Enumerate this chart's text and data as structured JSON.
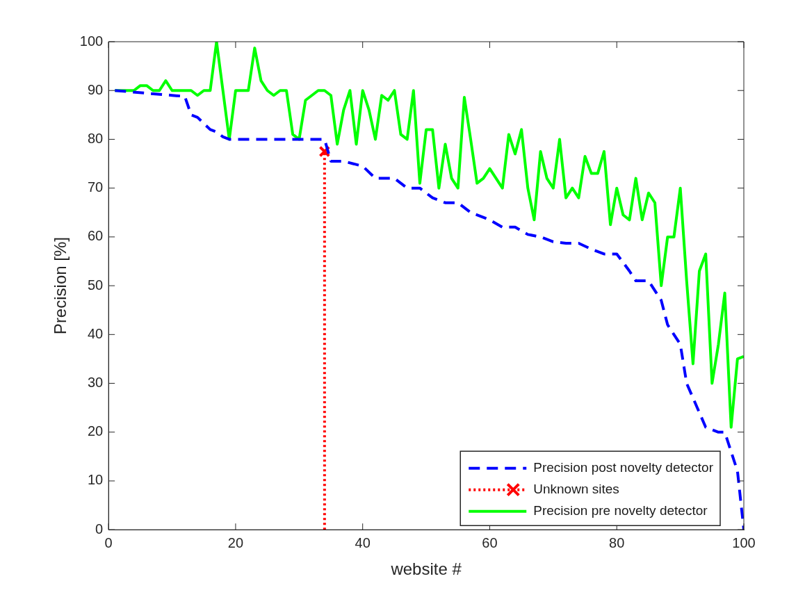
{
  "chart_data": {
    "type": "line",
    "xlabel": "website #",
    "ylabel": "Precision [%]",
    "xlim": [
      0,
      100
    ],
    "xticks": [
      0,
      20,
      40,
      60,
      80,
      100
    ],
    "ylim": [
      0,
      100
    ],
    "yticks": [
      0,
      10,
      20,
      30,
      40,
      50,
      60,
      70,
      80,
      90,
      100
    ],
    "grid": false,
    "legend": "bottom right",
    "series": [
      {
        "name": "Precision post novelty detector",
        "color": "#0000ff",
        "line_style": "dashed",
        "marker": "none",
        "x": [
          1,
          10,
          12,
          13,
          14,
          16,
          17,
          18,
          19,
          34,
          35,
          37,
          40,
          42,
          45,
          47,
          49,
          51,
          53,
          55,
          57,
          60,
          62,
          64,
          66,
          68,
          70,
          72,
          74,
          76,
          78,
          80,
          82,
          83,
          85,
          87,
          88,
          89,
          90,
          91,
          92,
          93,
          94,
          96,
          97,
          98,
          99,
          100
        ],
        "values": [
          90,
          89,
          88.8,
          85,
          84.5,
          82,
          81.5,
          80.5,
          80,
          80,
          75.5,
          75.5,
          74.5,
          72,
          72,
          70,
          70,
          68,
          67,
          67,
          65,
          63.5,
          62,
          62,
          60.5,
          60,
          59,
          58.7,
          58.7,
          57.5,
          56.5,
          56.5,
          53,
          51,
          51,
          47,
          42,
          40,
          38,
          30,
          27,
          24,
          21,
          20,
          20,
          16,
          12,
          0
        ]
      },
      {
        "name": "Unknown sites",
        "color": "#ff0000",
        "line_style": "dotted",
        "marker": "cross",
        "x": [
          34,
          34
        ],
        "values": [
          0,
          77.5
        ]
      },
      {
        "name": "Precision pre novelty detector",
        "color": "#00ff00",
        "line_style": "solid",
        "marker": "none",
        "x": [
          1,
          2,
          3,
          4,
          5,
          6,
          7,
          8,
          9,
          10,
          11,
          12,
          13,
          14,
          15,
          16,
          17,
          18,
          19,
          20,
          21,
          22,
          23,
          24,
          25,
          26,
          27,
          28,
          29,
          30,
          31,
          32,
          33,
          34,
          35,
          36,
          37,
          38,
          39,
          40,
          41,
          42,
          43,
          44,
          45,
          46,
          47,
          48,
          49,
          50,
          51,
          52,
          53,
          54,
          55,
          56,
          57,
          58,
          59,
          60,
          61,
          62,
          63,
          64,
          65,
          66,
          67,
          68,
          69,
          70,
          71,
          72,
          73,
          74,
          75,
          76,
          77,
          78,
          79,
          80,
          81,
          82,
          83,
          84,
          85,
          86,
          87,
          88,
          89,
          90,
          91,
          92,
          93,
          94,
          95,
          96,
          97,
          98,
          99,
          100
        ],
        "values": [
          90,
          90,
          90,
          90,
          91,
          91,
          90,
          90,
          92,
          90,
          90,
          90,
          90,
          89,
          90,
          90,
          100,
          90,
          80,
          90,
          90,
          90,
          98.7,
          92,
          90,
          89,
          90,
          90,
          81,
          80,
          88,
          89,
          90,
          90,
          89,
          79,
          86,
          90,
          79,
          90,
          86,
          80,
          89,
          88,
          90,
          81,
          80,
          90,
          71,
          82,
          82,
          70,
          79,
          72,
          70,
          88.6,
          80,
          71,
          72,
          74,
          72,
          70,
          81,
          77,
          82,
          70,
          63.5,
          77.5,
          72,
          70,
          80,
          68,
          70,
          68,
          76.5,
          73,
          73,
          77.5,
          62.5,
          70,
          64.5,
          63.5,
          72,
          63.5,
          69,
          67,
          50,
          60,
          60,
          70,
          51,
          34,
          53,
          56.5,
          30,
          38,
          48.5,
          21,
          35,
          35.5
        ]
      }
    ]
  }
}
